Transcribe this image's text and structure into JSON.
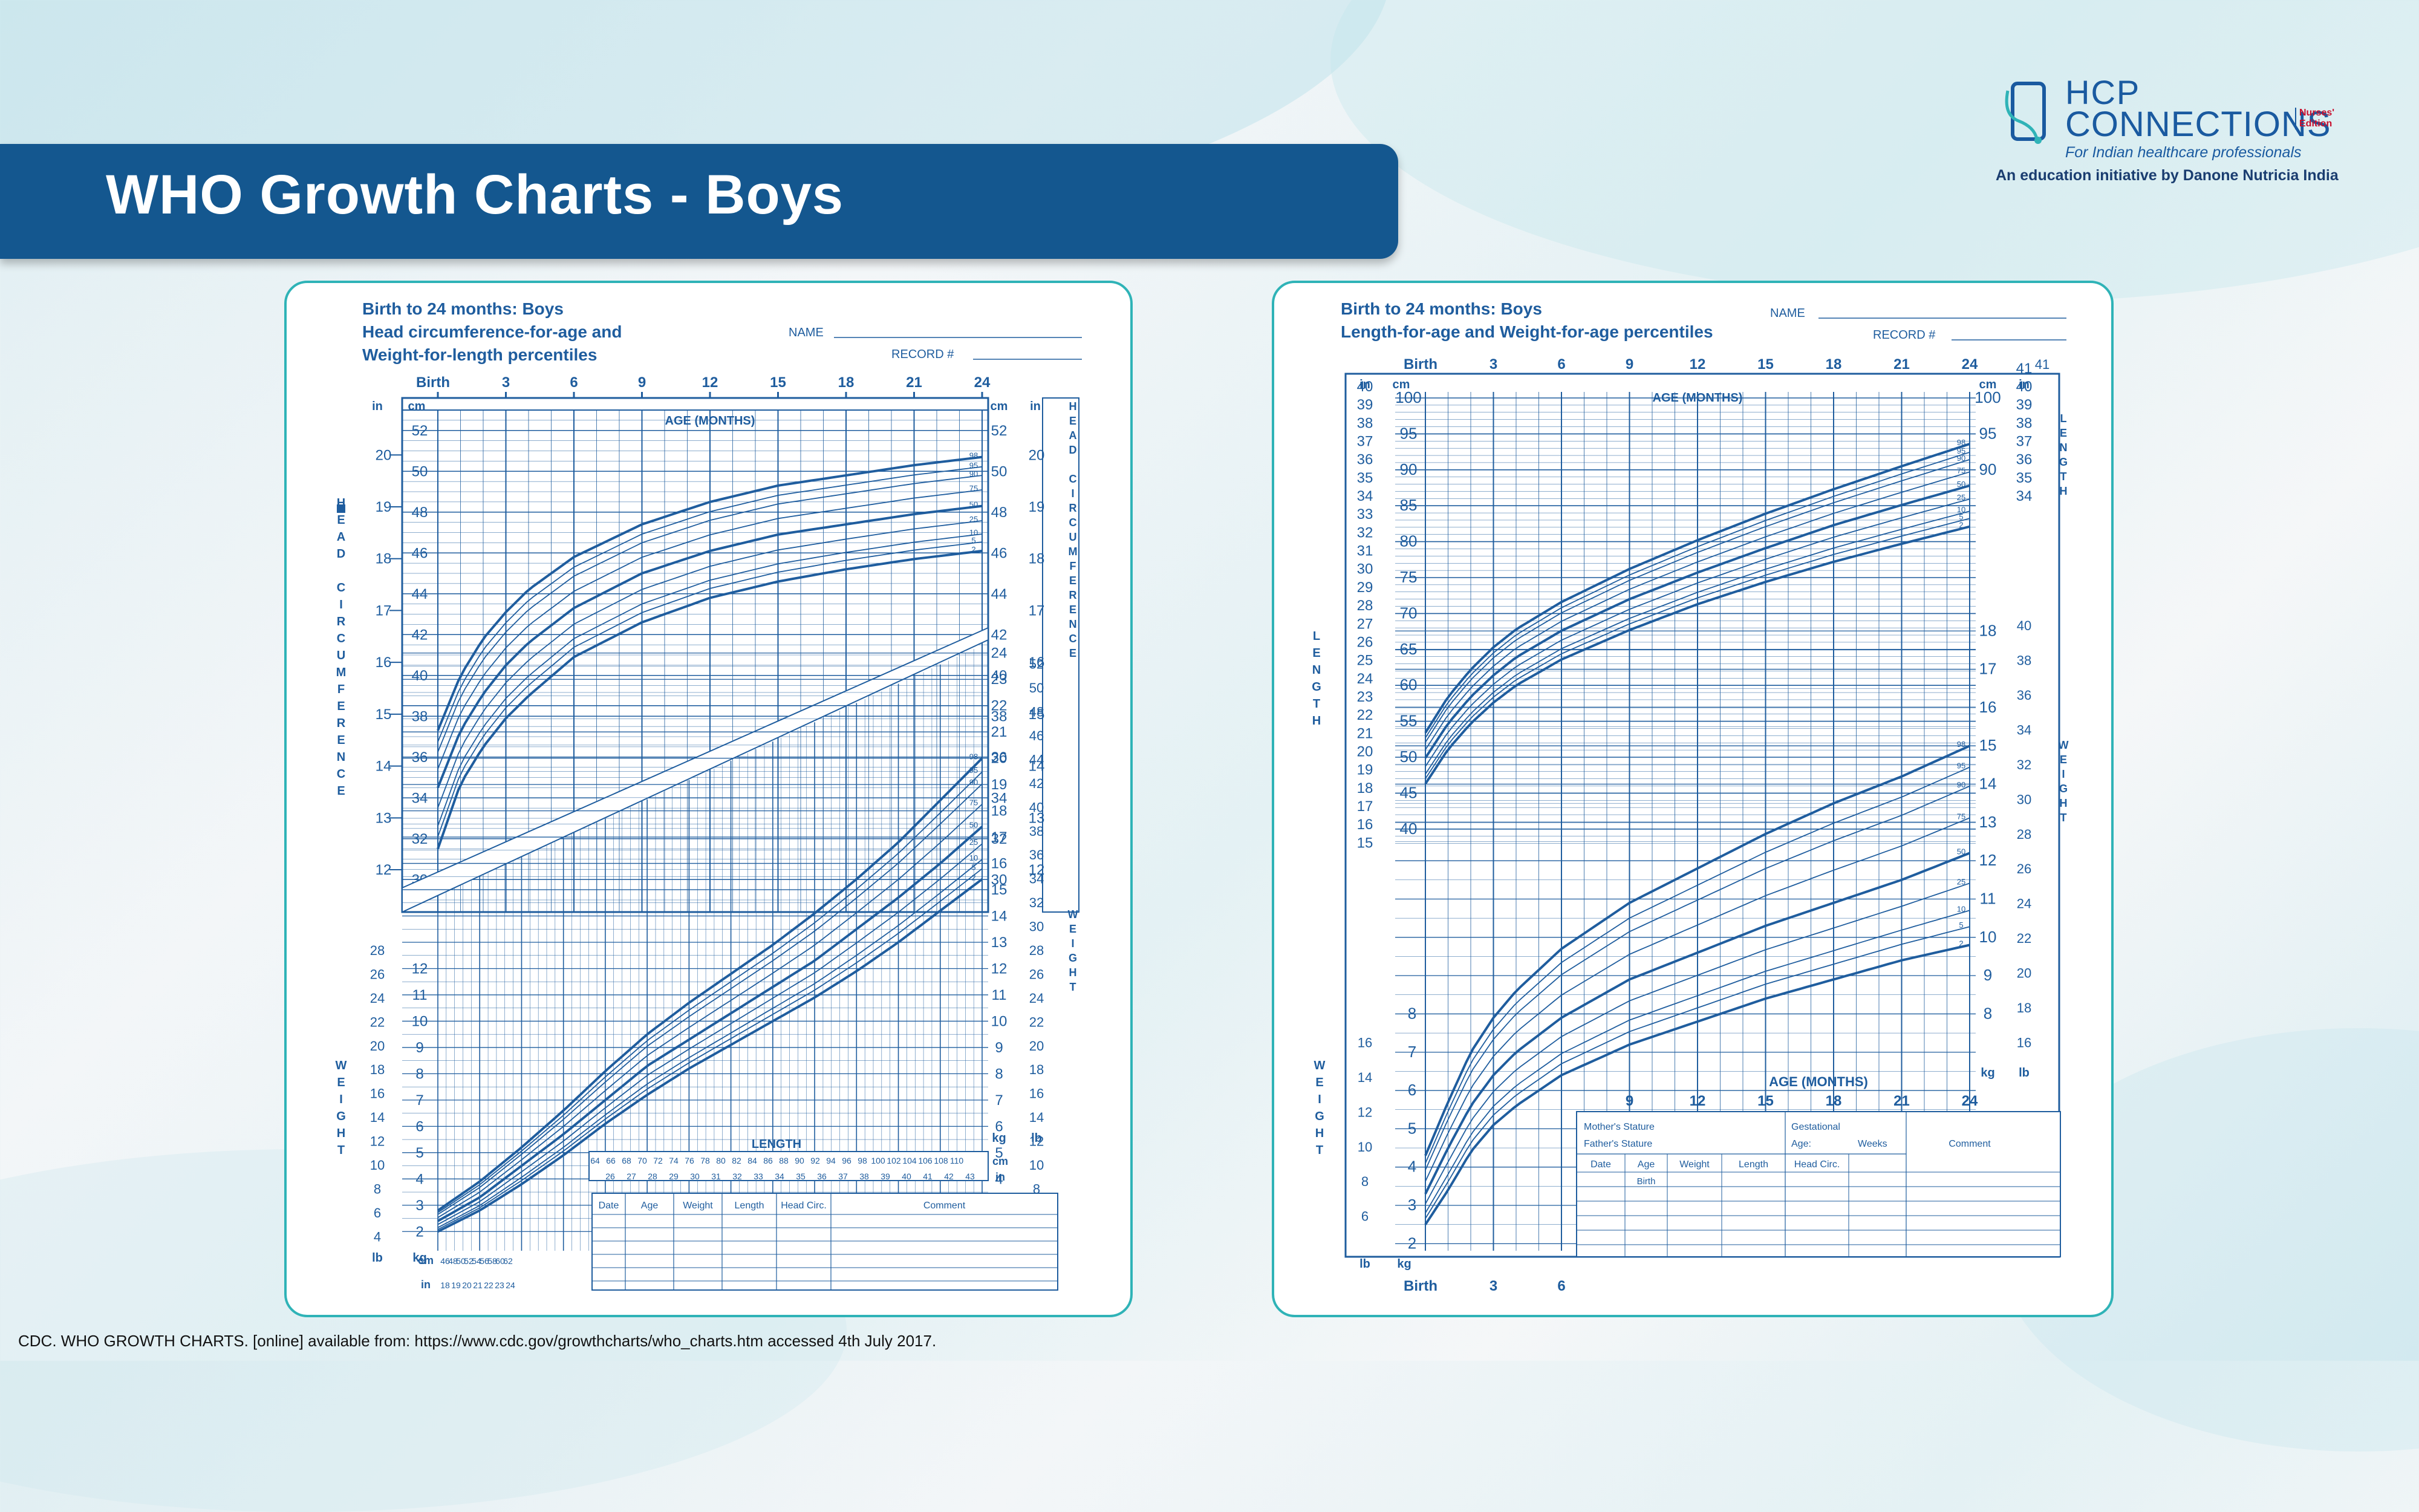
{
  "slide": {
    "title": "WHO Growth Charts - Boys",
    "citation": "CDC. WHO GROWTH CHARTS. [online] available from: https://www.cdc.gov/growthcharts/who_charts.htm  accessed 4th July 2017."
  },
  "logo": {
    "line1": "HCP",
    "line2": "CONNECTIONS",
    "edition": "Nurses' Edition",
    "tagline": "For Indian healthcare professionals",
    "initiative": "An education initiative by Danone Nutricia India"
  },
  "colors": {
    "banner": "#14578f",
    "chart_ink": "#1f5d9e",
    "panel_border": "#2fb3b7",
    "edition": "#c8102e"
  },
  "chart_data": [
    {
      "type": "line",
      "title": "Birth to 24 months: Boys",
      "subtitle1": "Head circumference-for-age and",
      "subtitle2": "Weight-for-length percentiles",
      "form": {
        "name": "NAME",
        "record": "RECORD #"
      },
      "top_axis": {
        "label": "AGE (MONTHS)",
        "ticks": [
          "Birth",
          "3",
          "6",
          "9",
          "12",
          "15",
          "18",
          "21",
          "24"
        ]
      },
      "hc_axis": {
        "label": "HEAD CIRCUMFERENCE",
        "cm_unit": "cm",
        "in_unit": "in",
        "cm_ticks": [
          30,
          32,
          34,
          36,
          38,
          40,
          42,
          44,
          46,
          48,
          50,
          52
        ],
        "in_ticks": [
          12,
          13,
          14,
          15,
          16,
          17,
          18,
          19,
          20
        ]
      },
      "percentiles": [
        "98",
        "95",
        "90",
        "75",
        "50",
        "25",
        "10",
        "5",
        "2"
      ],
      "hc_series": {
        "x": [
          0,
          1,
          2,
          3,
          4,
          6,
          9,
          12,
          15,
          18,
          21,
          24
        ],
        "p2": [
          31.5,
          34.7,
          36.5,
          37.9,
          39.0,
          40.9,
          42.6,
          43.8,
          44.6,
          45.2,
          45.7,
          46.1
        ],
        "p50": [
          34.5,
          37.3,
          39.1,
          40.5,
          41.6,
          43.3,
          45.0,
          46.1,
          46.9,
          47.4,
          47.9,
          48.3
        ],
        "p98": [
          37.3,
          40.0,
          41.8,
          43.1,
          44.2,
          45.8,
          47.4,
          48.5,
          49.3,
          49.8,
          50.3,
          50.7
        ]
      },
      "weight_axis": {
        "label": "WEIGHT",
        "kg_unit": "kg",
        "lb_unit": "lb",
        "kg_ticks": [
          2,
          3,
          4,
          5,
          6,
          7,
          8,
          9,
          10,
          11,
          12,
          13,
          14,
          15,
          16,
          17,
          18,
          19,
          20,
          21,
          22,
          23,
          24
        ],
        "lb_ticks": [
          4,
          6,
          8,
          10,
          12,
          14,
          16,
          18,
          20,
          22,
          24,
          26,
          28,
          30,
          32,
          34,
          36,
          38,
          40,
          42,
          44,
          46,
          48,
          50,
          52
        ]
      },
      "length_axis": {
        "label": "LENGTH",
        "cm_unit": "cm",
        "in_unit": "in",
        "cm_ticks": [
          "46",
          "48",
          "50",
          "52",
          "54",
          "56",
          "58",
          "60",
          "62",
          "64",
          "66",
          "68",
          "70",
          "72",
          "74",
          "76",
          "78",
          "80",
          "82",
          "84",
          "86",
          "88",
          "90",
          "92",
          "94",
          "96",
          "98",
          "100",
          "102",
          "104",
          "106",
          "108",
          "110"
        ],
        "in_ticks": [
          "18",
          "19",
          "20",
          "21",
          "22",
          "23",
          "24",
          "26",
          "27",
          "28",
          "29",
          "30",
          "31",
          "32",
          "33",
          "34",
          "35",
          "36",
          "37",
          "38",
          "39",
          "40",
          "41",
          "42",
          "43"
        ]
      },
      "wfl_series": {
        "x": [
          45,
          50,
          55,
          60,
          65,
          70,
          75,
          80,
          85,
          90,
          95,
          100,
          105,
          110
        ],
        "p2": [
          2.0,
          2.8,
          3.8,
          4.9,
          6.1,
          7.2,
          8.2,
          9.1,
          10.0,
          10.9,
          11.9,
          13.0,
          14.2,
          15.4
        ],
        "p50": [
          2.4,
          3.3,
          4.5,
          5.7,
          7.0,
          8.3,
          9.3,
          10.3,
          11.3,
          12.3,
          13.5,
          14.7,
          16.0,
          17.4
        ],
        "p98": [
          2.8,
          3.9,
          5.2,
          6.6,
          8.1,
          9.5,
          10.7,
          11.8,
          12.9,
          14.1,
          15.4,
          16.8,
          18.4,
          20.0
        ]
      },
      "table_headers": [
        "Date",
        "Age",
        "Weight",
        "Length",
        "Head Circ.",
        "Comment"
      ]
    },
    {
      "type": "line",
      "title": "Birth to 24 months: Boys",
      "subtitle1": "Length-for-age and Weight-for-age percentiles",
      "form": {
        "name": "NAME",
        "record": "RECORD #"
      },
      "top_axis": {
        "label": "AGE (MONTHS)",
        "ticks": [
          "Birth",
          "3",
          "6",
          "9",
          "12",
          "15",
          "18",
          "21",
          "24"
        ]
      },
      "length_axis": {
        "label": "LENGTH",
        "cm_unit": "cm",
        "in_unit": "in",
        "cm_ticks": [
          40,
          45,
          50,
          55,
          60,
          65,
          70,
          75,
          80,
          85,
          90,
          95,
          100
        ],
        "in_ticks": [
          15,
          16,
          17,
          18,
          19,
          20,
          21,
          22,
          23,
          24,
          25,
          26,
          27,
          28,
          29,
          30,
          31,
          32,
          33,
          34,
          35,
          36,
          37,
          38,
          39,
          40,
          41
        ]
      },
      "percentiles": [
        "98",
        "95",
        "90",
        "75",
        "50",
        "25",
        "10",
        "5",
        "2"
      ],
      "len_series": {
        "x": [
          0,
          1,
          2,
          3,
          4,
          6,
          9,
          12,
          15,
          18,
          21,
          24
        ],
        "p2": [
          46.3,
          51.1,
          54.7,
          57.6,
          60.0,
          63.6,
          67.7,
          71.3,
          74.4,
          77.2,
          79.7,
          82.1
        ],
        "p50": [
          49.9,
          54.7,
          58.4,
          61.4,
          63.9,
          67.6,
          72.0,
          75.7,
          79.1,
          82.3,
          85.1,
          87.8
        ],
        "p98": [
          53.4,
          58.4,
          62.2,
          65.3,
          67.8,
          71.6,
          76.2,
          80.2,
          83.9,
          87.3,
          90.5,
          93.6
        ]
      },
      "weight_axis": {
        "label": "WEIGHT",
        "kg_unit": "kg",
        "lb_unit": "lb",
        "kg_ticks": [
          2,
          3,
          4,
          5,
          6,
          7,
          8,
          9,
          10,
          11,
          12,
          13,
          14,
          15,
          16,
          17,
          18
        ],
        "lb_ticks": [
          6,
          8,
          10,
          12,
          14,
          16,
          18,
          20,
          22,
          24,
          26,
          28,
          30,
          32,
          34,
          36,
          38,
          40
        ]
      },
      "wt_series": {
        "x": [
          0,
          1,
          2,
          3,
          4,
          6,
          9,
          12,
          15,
          18,
          21,
          24
        ],
        "p2": [
          2.5,
          3.4,
          4.4,
          5.1,
          5.6,
          6.4,
          7.2,
          7.8,
          8.4,
          8.9,
          9.4,
          9.8
        ],
        "p50": [
          3.3,
          4.5,
          5.6,
          6.4,
          7.0,
          7.9,
          8.9,
          9.6,
          10.3,
          10.9,
          11.5,
          12.2
        ],
        "p98": [
          4.3,
          5.7,
          7.0,
          7.9,
          8.6,
          9.7,
          10.9,
          11.8,
          12.7,
          13.5,
          14.2,
          15.0
        ]
      },
      "bottom_axis": {
        "label": "AGE (MONTHS)",
        "ticks": [
          "9",
          "12",
          "15",
          "18",
          "21",
          "24"
        ],
        "low_ticks": [
          "Birth",
          "3",
          "6"
        ]
      },
      "form_block": {
        "mother": "Mother's Stature",
        "father": "Father's Stature",
        "gest": "Gestational",
        "age": "Age:",
        "weeks": "Weeks",
        "comment": "Comment"
      },
      "table_headers": [
        "Date",
        "Age",
        "Weight",
        "Length",
        "Head Circ."
      ],
      "birth_row": "Birth"
    }
  ]
}
